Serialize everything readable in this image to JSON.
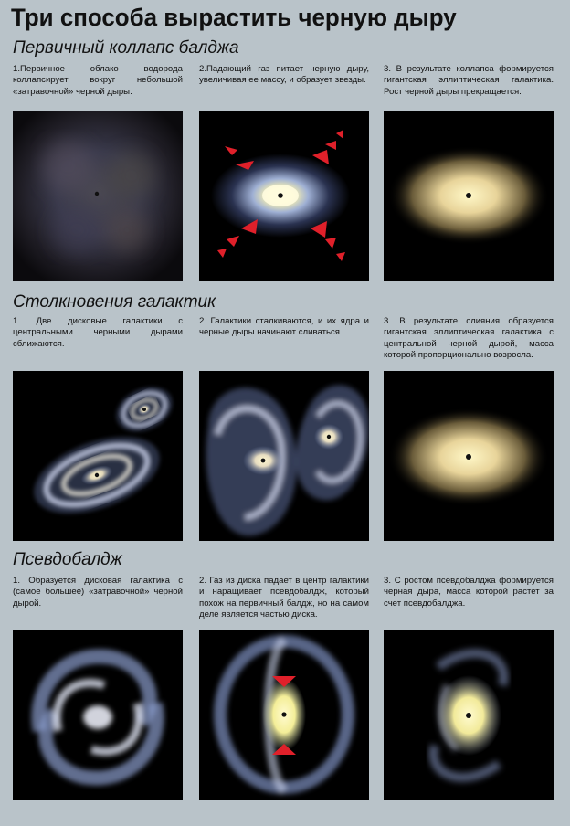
{
  "title": "Три способа вырастить черную дыру",
  "sections": [
    {
      "heading": "Первичный коллапс балджа",
      "captions": [
        "1.Первичное облако водорода коллапсирует вокруг небольшой «затравочной» черной дыры.",
        "2.Падающий газ питает черную дыру, увеличивая ее массу, и образует звезды.",
        "3. В результате коллапса формируется гигантская эллиптическая галактика. Рост черной дыры прекращается."
      ]
    },
    {
      "heading": "Столкновения галактик",
      "captions": [
        "1. Две дисковые галактики с центральными черными дырами сближаются.",
        "2. Галактики сталкиваются, и их ядра и черные дыры начинают сливаться.",
        "3. В результате слияния образуется гигантская эллиптическая галактика с центральной черной дырой, масса которой пропорционально возросла."
      ]
    },
    {
      "heading": "Псевдобалдж",
      "captions": [
        "1. Образуется дисковая галактика с (самое большее) «затравочной» черной дырой.",
        "2. Газ из диска падает в центр галактики и наращивает псевдобалдж, который похож на первичный балдж, но на самом деле является частью диска.",
        "3. С ростом псевдобалджа формируется черная дыра, масса которой растет за счет псевдобалджа."
      ]
    }
  ],
  "colors": {
    "background": "#b9c3c9",
    "panel": "#000000",
    "arrow": "#e0202a",
    "black_hole": "#111111"
  }
}
